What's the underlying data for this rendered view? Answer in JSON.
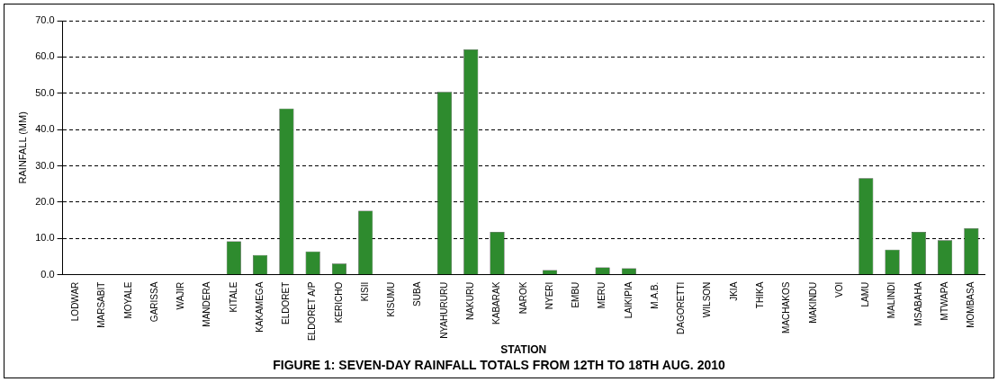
{
  "chart_data": {
    "type": "bar",
    "title": "FIGURE 1: SEVEN-DAY RAINFALL TOTALS FROM 12TH TO 18TH AUG. 2010",
    "xlabel": "STATION",
    "ylabel": "RAINFALL (MM)",
    "categories": [
      "LODWAR",
      "MARSABIT",
      "MOYALE",
      "GARISSA",
      "WAJIR",
      "MANDERA",
      "KITALE",
      "KAKAMEGA",
      "ELDORET",
      "ELDORET A/P",
      "KERICHO",
      "KISII",
      "KISUMU",
      "SUBA",
      "NYAHURURU",
      "NAKURU",
      "KABARAK",
      "NAROK",
      "NYERI",
      "EMBU",
      "MERU",
      "LAIKIPIA",
      "M.A.B.",
      "DAGORETTI",
      "WILSON",
      "JKIA",
      "THIKA",
      "MACHAKOS",
      "MAKINDU",
      "VOI",
      "LAMU",
      "MALINDI",
      "MSABAHA",
      "MTWAPA",
      "MOMBASA"
    ],
    "values": [
      0,
      0,
      0,
      0,
      0,
      0,
      9.2,
      5.4,
      45.8,
      6.4,
      3.1,
      17.6,
      0,
      0,
      50.4,
      62.1,
      11.8,
      0,
      1.3,
      0,
      2.0,
      1.8,
      0,
      0,
      0,
      0,
      0,
      0,
      0,
      0,
      26.6,
      6.9,
      11.8,
      9.5,
      12.8
    ],
    "color": "#2e8b2e",
    "ylim": [
      0,
      70
    ],
    "yticks": [
      {
        "value": 0,
        "label": "0.0"
      },
      {
        "value": 10,
        "label": "10.0"
      },
      {
        "value": 20,
        "label": "20.0"
      },
      {
        "value": 30,
        "label": "30.0"
      },
      {
        "value": 40,
        "label": "40.0"
      },
      {
        "value": 50,
        "label": "50.0"
      },
      {
        "value": 60,
        "label": "60.0"
      },
      {
        "value": 70,
        "label": "70.0"
      }
    ],
    "grid": "y",
    "legend": false
  }
}
